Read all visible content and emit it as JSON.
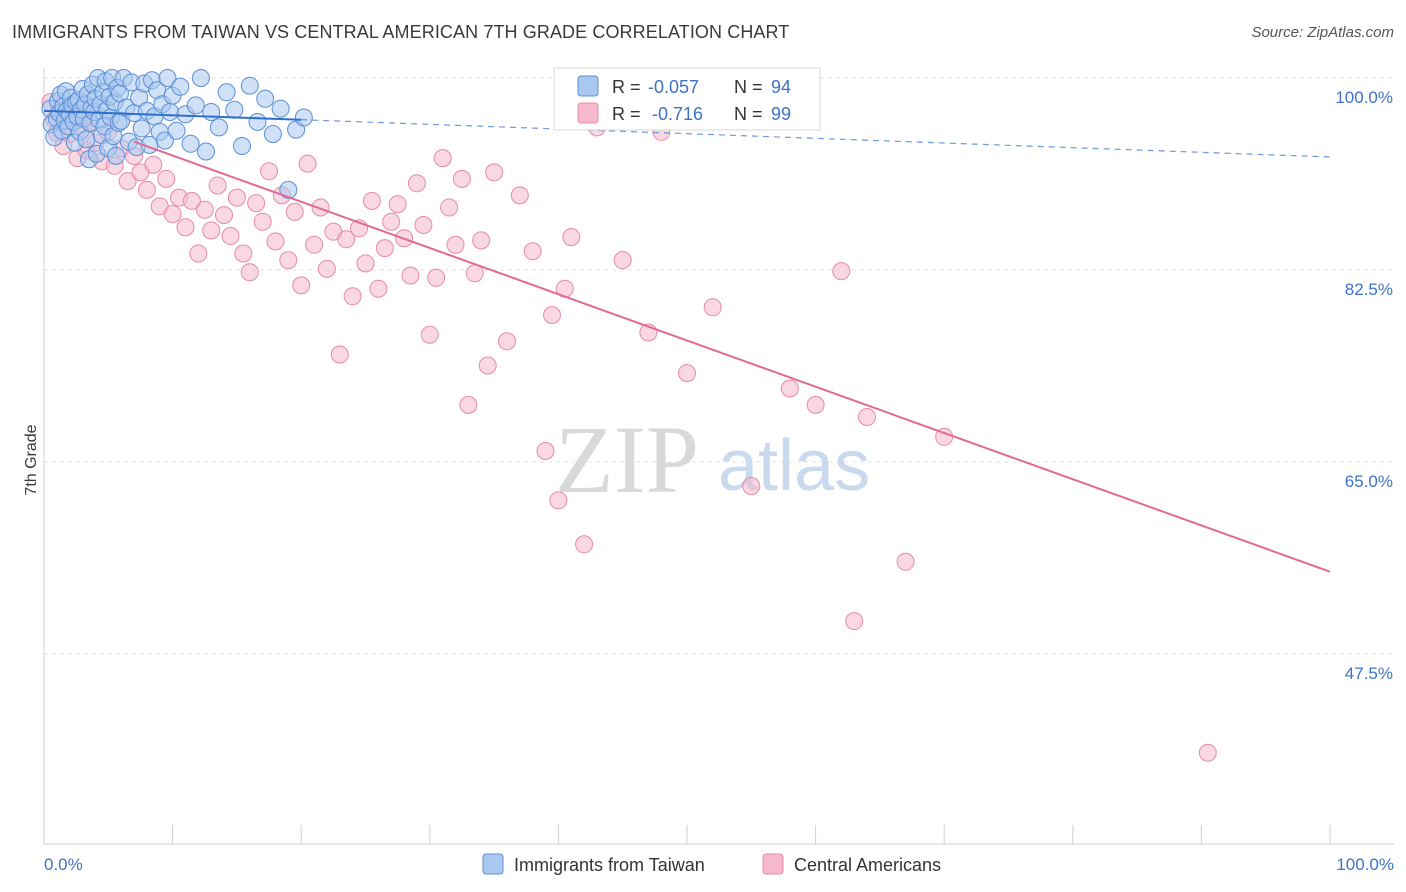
{
  "header": {
    "title": "IMMIGRANTS FROM TAIWAN VS CENTRAL AMERICAN 7TH GRADE CORRELATION CHART",
    "source": "Source: ZipAtlas.com"
  },
  "watermark": {
    "part1": "ZIP",
    "part2": "atlas"
  },
  "colors": {
    "blue_fill": "#a9c8f0",
    "blue_stroke": "#5a8fd6",
    "blue_line": "#2e6fcc",
    "pink_fill": "#f6b8cb",
    "pink_stroke": "#e88aa8",
    "pink_line": "#e06a96",
    "tick_text": "#3d73c6",
    "grid": "#e3e3e3"
  },
  "legend_box": {
    "rows": [
      {
        "r_label": "R =",
        "r_value": "-0.057",
        "n_label": "N =",
        "n_value": "94"
      },
      {
        "r_label": "R =",
        "r_value": "-0.716",
        "n_label": "N =",
        "n_value": "99"
      }
    ]
  },
  "bottom_legend": {
    "items": [
      {
        "label": "Immigrants from Taiwan"
      },
      {
        "label": "Central Americans"
      }
    ]
  },
  "chart_data": {
    "type": "scatter",
    "title": "IMMIGRANTS FROM TAIWAN VS CENTRAL AMERICAN 7TH GRADE CORRELATION CHART",
    "xlabel": "",
    "ylabel": "7th Grade",
    "xlim": [
      0,
      100
    ],
    "ylim": [
      30,
      101.5
    ],
    "x_tick_labels": [
      "0.0%",
      "100.0%"
    ],
    "y_ticks": [
      {
        "value": 100.0,
        "label": "100.0%"
      },
      {
        "value": 82.5,
        "label": "82.5%"
      },
      {
        "value": 65.0,
        "label": "65.0%"
      },
      {
        "value": 47.5,
        "label": "47.5%"
      }
    ],
    "grid": true,
    "legend_placement": "top-center",
    "series": [
      {
        "name": "Immigrants from Taiwan",
        "r": -0.057,
        "n": 94,
        "trend": {
          "solid": [
            [
              0,
              97.0
            ],
            [
              20,
              96.2
            ]
          ],
          "dashed": [
            [
              20,
              96.2
            ],
            [
              100,
              92.8
            ]
          ]
        },
        "points": [
          [
            0.5,
            97.2
          ],
          [
            0.6,
            95.8
          ],
          [
            0.8,
            94.6
          ],
          [
            1.0,
            96.3
          ],
          [
            1.1,
            97.9
          ],
          [
            1.2,
            96.8
          ],
          [
            1.3,
            98.5
          ],
          [
            1.4,
            95.2
          ],
          [
            1.5,
            97.4
          ],
          [
            1.6,
            96.1
          ],
          [
            1.7,
            98.8
          ],
          [
            1.8,
            97.0
          ],
          [
            1.9,
            95.6
          ],
          [
            2.0,
            96.7
          ],
          [
            2.1,
            98.2
          ],
          [
            2.2,
            97.5
          ],
          [
            2.3,
            96.0
          ],
          [
            2.4,
            94.1
          ],
          [
            2.5,
            97.8
          ],
          [
            2.6,
            96.5
          ],
          [
            2.7,
            98.0
          ],
          [
            2.8,
            95.1
          ],
          [
            2.9,
            97.1
          ],
          [
            3.0,
            99.0
          ],
          [
            3.1,
            96.3
          ],
          [
            3.2,
            97.6
          ],
          [
            3.3,
            94.4
          ],
          [
            3.4,
            98.5
          ],
          [
            3.5,
            92.6
          ],
          [
            3.6,
            95.9
          ],
          [
            3.7,
            97.3
          ],
          [
            3.8,
            99.4
          ],
          [
            3.9,
            96.9
          ],
          [
            4.0,
            98.1
          ],
          [
            4.1,
            93.1
          ],
          [
            4.2,
            100.0
          ],
          [
            4.3,
            96.2
          ],
          [
            4.4,
            97.6
          ],
          [
            4.5,
            94.8
          ],
          [
            4.6,
            98.7
          ],
          [
            4.7,
            95.6
          ],
          [
            4.8,
            99.7
          ],
          [
            4.9,
            97.1
          ],
          [
            5.0,
            93.6
          ],
          [
            5.1,
            98.3
          ],
          [
            5.2,
            96.4
          ],
          [
            5.3,
            100.0
          ],
          [
            5.4,
            94.7
          ],
          [
            5.5,
            97.8
          ],
          [
            5.6,
            92.9
          ],
          [
            5.7,
            99.1
          ],
          [
            5.8,
            95.9
          ],
          [
            5.9,
            98.6
          ],
          [
            6.0,
            96.1
          ],
          [
            6.2,
            100.0
          ],
          [
            6.4,
            97.3
          ],
          [
            6.6,
            94.2
          ],
          [
            6.8,
            99.6
          ],
          [
            7.0,
            96.8
          ],
          [
            7.2,
            93.7
          ],
          [
            7.4,
            98.2
          ],
          [
            7.6,
            95.4
          ],
          [
            7.8,
            99.5
          ],
          [
            8.0,
            97.0
          ],
          [
            8.2,
            93.9
          ],
          [
            8.4,
            99.8
          ],
          [
            8.6,
            96.5
          ],
          [
            8.8,
            98.9
          ],
          [
            9.0,
            95.1
          ],
          [
            9.2,
            97.6
          ],
          [
            9.4,
            94.3
          ],
          [
            9.6,
            100.0
          ],
          [
            9.8,
            96.9
          ],
          [
            10.0,
            98.4
          ],
          [
            10.3,
            95.2
          ],
          [
            10.6,
            99.2
          ],
          [
            11.0,
            96.7
          ],
          [
            11.4,
            94.0
          ],
          [
            11.8,
            97.5
          ],
          [
            12.2,
            100.0
          ],
          [
            12.6,
            93.3
          ],
          [
            13.0,
            96.9
          ],
          [
            13.6,
            95.5
          ],
          [
            14.2,
            98.7
          ],
          [
            14.8,
            97.1
          ],
          [
            15.4,
            93.8
          ],
          [
            16.0,
            99.3
          ],
          [
            16.6,
            96.0
          ],
          [
            17.2,
            98.1
          ],
          [
            17.8,
            94.9
          ],
          [
            18.4,
            97.2
          ],
          [
            19.0,
            89.8
          ],
          [
            19.6,
            95.3
          ],
          [
            20.2,
            96.4
          ]
        ]
      },
      {
        "name": "Central Americans",
        "r": -0.716,
        "n": 99,
        "trend": {
          "solid": [
            [
              7,
              94.2
            ],
            [
              100,
              55.0
            ]
          ]
        },
        "points": [
          [
            0.5,
            97.8
          ],
          [
            0.8,
            96.2
          ],
          [
            1.0,
            95.0
          ],
          [
            1.2,
            97.1
          ],
          [
            1.5,
            93.8
          ],
          [
            1.8,
            96.5
          ],
          [
            2.0,
            94.9
          ],
          [
            2.3,
            96.8
          ],
          [
            2.6,
            92.7
          ],
          [
            3.0,
            95.4
          ],
          [
            3.3,
            93.4
          ],
          [
            3.6,
            96.0
          ],
          [
            4.0,
            94.1
          ],
          [
            4.5,
            92.4
          ],
          [
            5.0,
            95.1
          ],
          [
            5.5,
            92.0
          ],
          [
            6.0,
            93.6
          ],
          [
            6.5,
            90.6
          ],
          [
            7.0,
            92.9
          ],
          [
            7.5,
            91.4
          ],
          [
            8.0,
            89.8
          ],
          [
            8.5,
            92.1
          ],
          [
            9.0,
            88.3
          ],
          [
            9.5,
            90.8
          ],
          [
            10.0,
            87.6
          ],
          [
            10.5,
            89.1
          ],
          [
            11.0,
            86.4
          ],
          [
            11.5,
            88.8
          ],
          [
            12.0,
            84.0
          ],
          [
            12.5,
            88.0
          ],
          [
            13.0,
            86.1
          ],
          [
            13.5,
            90.2
          ],
          [
            14.0,
            87.5
          ],
          [
            14.5,
            85.6
          ],
          [
            15.0,
            89.1
          ],
          [
            15.5,
            84.0
          ],
          [
            16.0,
            82.3
          ],
          [
            16.5,
            88.6
          ],
          [
            17.0,
            86.9
          ],
          [
            17.5,
            91.5
          ],
          [
            18.0,
            85.1
          ],
          [
            18.5,
            89.3
          ],
          [
            19.0,
            83.4
          ],
          [
            19.5,
            87.8
          ],
          [
            20.0,
            81.1
          ],
          [
            20.5,
            92.2
          ],
          [
            21.0,
            84.8
          ],
          [
            21.5,
            88.2
          ],
          [
            22.0,
            82.6
          ],
          [
            22.5,
            86.0
          ],
          [
            23.0,
            74.8
          ],
          [
            23.5,
            85.3
          ],
          [
            24.0,
            80.1
          ],
          [
            24.5,
            86.3
          ],
          [
            25.0,
            83.1
          ],
          [
            25.5,
            88.8
          ],
          [
            26.0,
            80.8
          ],
          [
            26.5,
            84.5
          ],
          [
            27.0,
            86.9
          ],
          [
            27.5,
            88.5
          ],
          [
            28.0,
            85.4
          ],
          [
            28.5,
            82.0
          ],
          [
            29.0,
            90.4
          ],
          [
            29.5,
            86.6
          ],
          [
            30.0,
            76.6
          ],
          [
            30.5,
            81.8
          ],
          [
            31.0,
            92.7
          ],
          [
            31.5,
            88.2
          ],
          [
            32.0,
            84.8
          ],
          [
            32.5,
            90.8
          ],
          [
            33.0,
            70.2
          ],
          [
            33.5,
            82.2
          ],
          [
            34.0,
            85.2
          ],
          [
            34.5,
            73.8
          ],
          [
            35.0,
            91.4
          ],
          [
            36.0,
            76.0
          ],
          [
            37.0,
            89.3
          ],
          [
            38.0,
            84.2
          ],
          [
            39.0,
            66.0
          ],
          [
            39.5,
            78.4
          ],
          [
            40.0,
            61.5
          ],
          [
            40.5,
            80.8
          ],
          [
            41.0,
            85.5
          ],
          [
            42.0,
            57.5
          ],
          [
            43.0,
            95.5
          ],
          [
            45.0,
            83.4
          ],
          [
            47.0,
            76.8
          ],
          [
            48.0,
            95.1
          ],
          [
            50.0,
            73.1
          ],
          [
            52.0,
            79.1
          ],
          [
            55.0,
            62.8
          ],
          [
            58.0,
            71.7
          ],
          [
            60.0,
            70.2
          ],
          [
            62.0,
            82.4
          ],
          [
            63.0,
            50.5
          ],
          [
            64.0,
            69.1
          ],
          [
            67.0,
            55.9
          ],
          [
            70.0,
            67.3
          ],
          [
            90.5,
            38.5
          ]
        ]
      }
    ]
  }
}
